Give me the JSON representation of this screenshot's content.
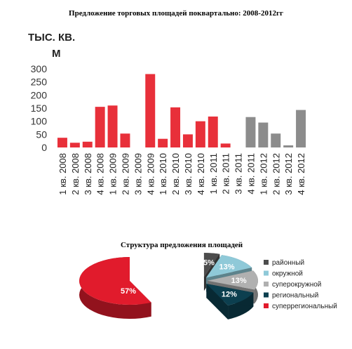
{
  "titles": {
    "top": "Предложение торговых площадей поквартально: 2008-2012гг",
    "bottom": "Структура предложения площадей"
  },
  "chart_data": [
    {
      "type": "bar",
      "title": "Предложение торговых площадей поквартально: 2008-2012гг",
      "ylabel_lines": [
        "ТЫС. КВ.",
        "М"
      ],
      "ylim": [
        0,
        300
      ],
      "yticks": [
        0,
        50,
        100,
        150,
        200,
        250,
        300
      ],
      "grid": false,
      "categories": [
        "1 кв. 2008",
        "2 кв. 2008",
        "3 кв. 2008",
        "4 кв. 2008",
        "1 кв. 2009",
        "2 кв. 2009",
        "3 кв. 2009",
        "4 кв. 2009",
        "1 кв. 2010",
        "2 кв. 2010",
        "3 кв. 2010",
        "4 кв. 2010",
        "1 кв. 2011",
        "2 кв. 2011",
        "3 кв. 2011",
        "4 кв. 2011",
        "1 кв. 2012",
        "2 кв. 2012",
        "3 кв. 2012",
        "4 кв. 2012"
      ],
      "values": [
        37,
        18,
        22,
        155,
        160,
        53,
        0,
        280,
        33,
        153,
        50,
        100,
        118,
        15,
        0,
        116,
        95,
        53,
        8,
        143
      ],
      "bar_colors": [
        "#e8303a",
        "#e8303a",
        "#e8303a",
        "#e8303a",
        "#e8303a",
        "#e8303a",
        "#e8303a",
        "#e8303a",
        "#e8303a",
        "#e8303a",
        "#e8303a",
        "#e8303a",
        "#e8303a",
        "#e8303a",
        "#e8303a",
        "#8c8c8c",
        "#8c8c8c",
        "#8c8c8c",
        "#8c8c8c",
        "#8c8c8c"
      ]
    },
    {
      "type": "pie",
      "title": "Структура предложения площадей",
      "legend_position": "right",
      "slices": [
        {
          "name": "районный",
          "value": 5,
          "label": "5%",
          "color": "#4d4d4d"
        },
        {
          "name": "окружной",
          "value": 13,
          "label": "13%",
          "color": "#8fc9d8"
        },
        {
          "name": "суперокружной",
          "value": 13,
          "label": "13%",
          "color": "#b0b0b0"
        },
        {
          "name": "региональный",
          "value": 12,
          "label": "12%",
          "color": "#0c3f4f"
        },
        {
          "name": "суперрегиональный",
          "value": 57,
          "label": "57%",
          "color": "#e11b2c"
        }
      ]
    }
  ]
}
